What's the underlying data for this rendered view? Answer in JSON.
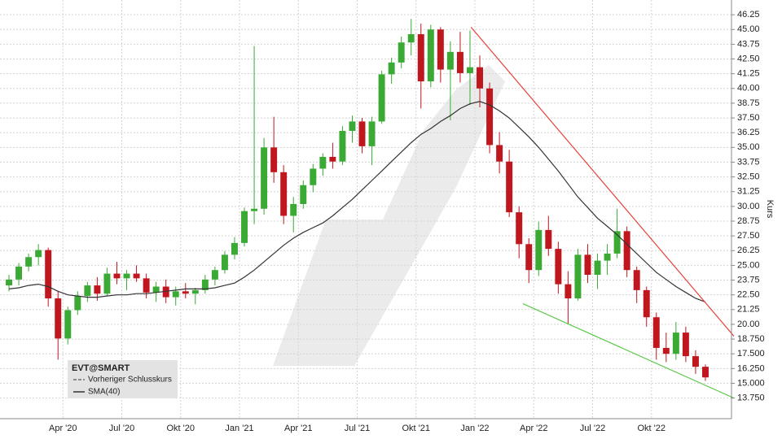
{
  "chart_data": {
    "type": "candlestick",
    "y_axis_label": "Kurs",
    "ylim": [
      12,
      47.5
    ],
    "yticks": [
      {
        "value": 13.75,
        "label": "13.750"
      },
      {
        "value": 15,
        "label": "15.000"
      },
      {
        "value": 16.25,
        "label": "16.250"
      },
      {
        "value": 17.5,
        "label": "17.500"
      },
      {
        "value": 18.75,
        "label": "18.750"
      },
      {
        "value": 20,
        "label": "20.00"
      },
      21.25,
      {
        "value": 22.5,
        "label": "22.50"
      },
      23.75,
      {
        "value": 25,
        "label": "25.00"
      },
      26.25,
      {
        "value": 27.5,
        "label": "27.50"
      },
      28.75,
      {
        "value": 30,
        "label": "30.00"
      },
      31.25,
      {
        "value": 32.5,
        "label": "32.50"
      },
      33.75,
      {
        "value": 35,
        "label": "35.00"
      },
      36.25,
      {
        "value": 37.5,
        "label": "37.50"
      },
      38.75,
      {
        "value": 40,
        "label": "40.00"
      },
      41.25,
      {
        "value": 42.5,
        "label": "42.50"
      },
      43.75,
      {
        "value": 45,
        "label": "45.00"
      },
      46.25
    ],
    "grid": true,
    "categories": [
      null,
      null,
      null,
      null,
      null,
      null,
      "Apr '20",
      null,
      null,
      null,
      null,
      null,
      "Jul '20",
      null,
      null,
      null,
      null,
      null,
      "Okt '20",
      null,
      null,
      null,
      null,
      null,
      "Jan '21",
      null,
      null,
      null,
      null,
      null,
      "Apr '21",
      null,
      null,
      null,
      null,
      null,
      "Jul '21",
      null,
      null,
      null,
      null,
      null,
      "Okt '21",
      null,
      null,
      null,
      null,
      null,
      "Jan '22",
      null,
      null,
      null,
      null,
      null,
      "Apr '22",
      null,
      null,
      null,
      null,
      null,
      "Jul '22",
      null,
      null,
      null,
      null,
      null,
      "Okt '22",
      null,
      null,
      null,
      null,
      null
    ],
    "up_color": "#3aaa35",
    "down_color": "#c0171f",
    "series": [
      {
        "name": "EVT@SMART",
        "open": [
          23.3,
          23.8,
          24.9,
          25.7,
          26.3,
          22.2,
          18.8,
          21.2,
          22.4,
          23.3,
          22.6,
          24.3,
          23.9,
          24.3,
          23.9,
          22.7,
          23.2,
          22.3,
          22.8,
          22.6,
          22.9,
          23.8,
          24.6,
          25.9,
          26.9,
          29.6,
          29.8,
          35.0,
          32.9,
          29.2,
          30.2,
          31.8,
          33.2,
          34.2,
          33.8,
          36.4,
          37.2,
          35.1,
          37.2,
          41.2,
          42.2,
          43.9,
          44.6,
          40.6,
          45.0,
          41.6,
          43.1,
          41.3,
          41.8,
          40.0,
          35.2,
          33.8,
          29.5,
          26.8,
          24.6,
          28.0,
          26.4,
          23.4,
          22.2,
          25.9,
          24.2,
          25.4,
          26.0,
          27.9,
          24.6,
          22.9,
          20.6,
          18.0,
          17.5,
          19.3,
          17.3,
          16.4
        ],
        "high": [
          24.2,
          25.2,
          26.0,
          26.8,
          26.5,
          22.8,
          21.5,
          22.8,
          23.6,
          24.0,
          24.8,
          25.3,
          24.6,
          25.0,
          24.3,
          23.6,
          23.8,
          23.2,
          23.5,
          23.1,
          24.2,
          24.9,
          26.2,
          27.4,
          29.9,
          43.6,
          35.8,
          37.6,
          33.5,
          30.8,
          32.2,
          33.6,
          34.5,
          35.4,
          36.8,
          37.7,
          37.5,
          37.6,
          41.5,
          42.6,
          44.4,
          45.9,
          45.5,
          45.4,
          45.2,
          44.0,
          44.8,
          44.9,
          42.8,
          40.5,
          36.3,
          34.8,
          30.0,
          27.3,
          28.7,
          29.2,
          27.0,
          24.5,
          26.4,
          26.8,
          26.0,
          26.8,
          29.8,
          28.3,
          24.9,
          23.2,
          21.0,
          19.3,
          20.2,
          19.8,
          17.8,
          16.6
        ],
        "low": [
          22.8,
          23.3,
          24.5,
          25.0,
          21.5,
          17.0,
          18.3,
          20.8,
          21.9,
          22.0,
          22.4,
          23.4,
          22.9,
          23.6,
          22.2,
          21.9,
          21.8,
          21.6,
          22.2,
          21.7,
          22.6,
          23.3,
          24.3,
          25.5,
          26.6,
          28.5,
          29.3,
          32.0,
          28.5,
          27.8,
          29.8,
          31.2,
          32.6,
          33.2,
          33.5,
          35.4,
          34.5,
          33.5,
          37.0,
          40.4,
          41.7,
          42.8,
          38.3,
          40.1,
          40.5,
          37.3,
          40.5,
          38.6,
          38.4,
          34.5,
          32.8,
          29.1,
          25.6,
          23.5,
          24.1,
          25.8,
          22.6,
          20.0,
          22.0,
          23.5,
          23.0,
          24.2,
          25.6,
          24.0,
          21.8,
          19.8,
          17.0,
          16.8,
          17.0,
          16.8,
          15.8,
          15.2
        ],
        "close": [
          23.8,
          24.9,
          25.7,
          26.3,
          22.2,
          18.8,
          21.2,
          22.4,
          23.3,
          22.6,
          24.3,
          23.9,
          24.3,
          23.9,
          22.7,
          23.2,
          22.3,
          22.8,
          22.6,
          22.9,
          23.8,
          24.6,
          25.9,
          26.9,
          29.6,
          29.8,
          35.0,
          32.9,
          29.2,
          30.2,
          31.8,
          33.2,
          34.2,
          33.8,
          36.4,
          37.2,
          35.1,
          37.2,
          41.2,
          42.2,
          43.9,
          44.6,
          40.6,
          45.0,
          41.6,
          43.1,
          41.3,
          41.8,
          40.0,
          35.2,
          33.8,
          29.5,
          26.8,
          24.6,
          28.0,
          26.4,
          23.4,
          22.2,
          25.9,
          24.2,
          25.4,
          26.0,
          27.9,
          24.6,
          22.9,
          20.6,
          18.0,
          17.5,
          19.3,
          17.3,
          16.4,
          15.5
        ]
      }
    ],
    "previous_close": {
      "name": "Vorheriger Schlusskurs",
      "color": "#333333"
    },
    "sma": {
      "name": "SMA(40)",
      "color": "#333333",
      "values": [
        23.0,
        23.1,
        23.3,
        23.4,
        23.2,
        22.8,
        22.5,
        22.4,
        22.3,
        22.3,
        22.4,
        22.5,
        22.5,
        22.6,
        22.6,
        22.7,
        22.8,
        22.9,
        23.0,
        23.0,
        23.0,
        23.1,
        23.3,
        23.5,
        24.0,
        24.6,
        25.3,
        26.0,
        26.7,
        27.3,
        27.8,
        28.2,
        28.6,
        29.2,
        29.9,
        30.6,
        31.4,
        32.2,
        33.0,
        33.8,
        34.6,
        35.4,
        36.1,
        36.6,
        37.2,
        37.7,
        38.3,
        38.7,
        38.9,
        38.6,
        38.1,
        37.5,
        36.7,
        35.9,
        35.0,
        34.0,
        33.0,
        31.9,
        30.8,
        29.9,
        29.0,
        28.3,
        27.6,
        26.8,
        26.0,
        25.2,
        24.4,
        23.8,
        23.2,
        22.7,
        22.2,
        21.9
      ]
    },
    "trendlines": [
      {
        "color": "#e8413c",
        "x": [
          47.1,
          73.9
        ],
        "values": [
          45.2,
          19.0
        ]
      },
      {
        "color": "#5cc84a",
        "x": [
          52.4,
          73.9
        ],
        "values": [
          21.75,
          13.75
        ]
      }
    ]
  }
}
